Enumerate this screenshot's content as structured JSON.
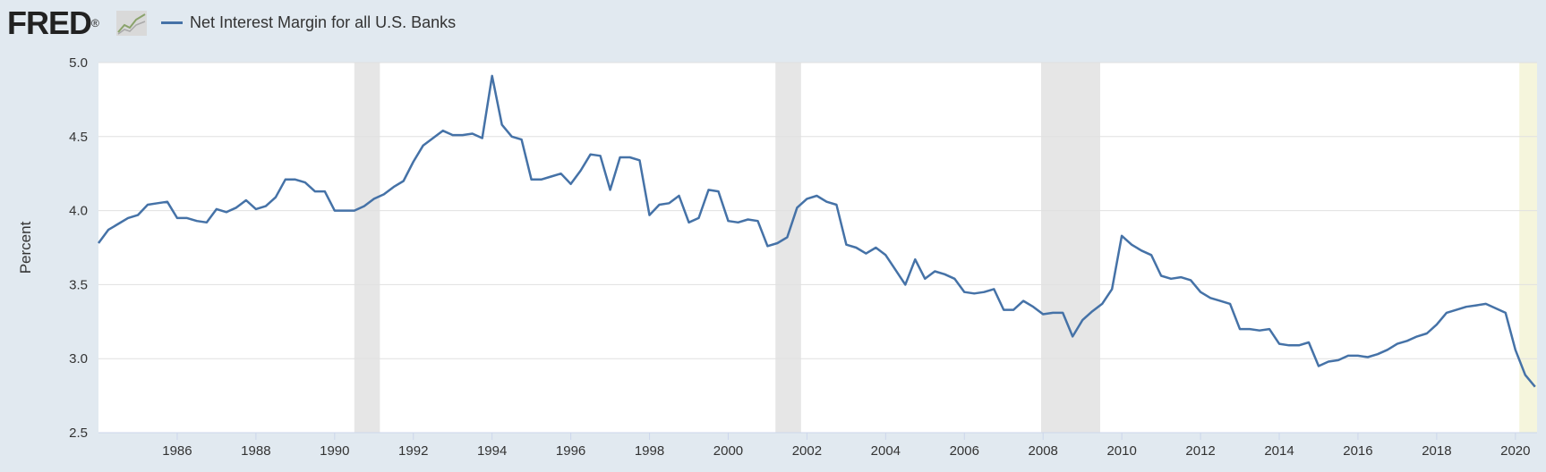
{
  "header": {
    "logo": "FRED",
    "logo_mark": "®",
    "graph_icon": "line-graph-icon",
    "legend_label": "Net Interest Margin for all U.S. Banks"
  },
  "colors": {
    "series": "#4572a7",
    "recession": "#e6e6e6",
    "projection": "#f5f5dc",
    "plot_bg": "#ffffff",
    "page_bg": "#e1e9f0",
    "grid": "#e0e0e0"
  },
  "chart_data": {
    "type": "line",
    "title": "",
    "xlabel": "",
    "ylabel": "Percent",
    "xlim": [
      1984.0,
      2020.55
    ],
    "ylim": [
      2.5,
      5.0
    ],
    "yticks": [
      "2.5",
      "3.0",
      "3.5",
      "4.0",
      "4.5",
      "5.0"
    ],
    "xticks": [
      "1986",
      "1988",
      "1990",
      "1992",
      "1994",
      "1996",
      "1998",
      "2000",
      "2002",
      "2004",
      "2006",
      "2008",
      "2010",
      "2012",
      "2014",
      "2016",
      "2018",
      "2020"
    ],
    "grid": true,
    "legend_position": "top-left",
    "recessions": [
      [
        1990.5,
        1991.15
      ],
      [
        2001.2,
        2001.85
      ],
      [
        2007.95,
        2009.45
      ]
    ],
    "projection_band": [
      2020.1,
      2020.55
    ],
    "series": [
      {
        "name": "Net Interest Margin for all U.S. Banks",
        "x": [
          1984.0,
          1984.25,
          1984.5,
          1984.75,
          1985.0,
          1985.25,
          1985.5,
          1985.75,
          1986.0,
          1986.25,
          1986.5,
          1986.75,
          1987.0,
          1987.25,
          1987.5,
          1987.75,
          1988.0,
          1988.25,
          1988.5,
          1988.75,
          1989.0,
          1989.25,
          1989.5,
          1989.75,
          1990.0,
          1990.25,
          1990.5,
          1990.75,
          1991.0,
          1991.25,
          1991.5,
          1991.75,
          1992.0,
          1992.25,
          1992.5,
          1992.75,
          1993.0,
          1993.25,
          1993.5,
          1993.75,
          1994.0,
          1994.25,
          1994.5,
          1994.75,
          1995.0,
          1995.25,
          1995.5,
          1995.75,
          1996.0,
          1996.25,
          1996.5,
          1996.75,
          1997.0,
          1997.25,
          1997.5,
          1997.75,
          1998.0,
          1998.25,
          1998.5,
          1998.75,
          1999.0,
          1999.25,
          1999.5,
          1999.75,
          2000.0,
          2000.25,
          2000.5,
          2000.75,
          2001.0,
          2001.25,
          2001.5,
          2001.75,
          2002.0,
          2002.25,
          2002.5,
          2002.75,
          2003.0,
          2003.25,
          2003.5,
          2003.75,
          2004.0,
          2004.25,
          2004.5,
          2004.75,
          2005.0,
          2005.25,
          2005.5,
          2005.75,
          2006.0,
          2006.25,
          2006.5,
          2006.75,
          2007.0,
          2007.25,
          2007.5,
          2007.75,
          2008.0,
          2008.25,
          2008.5,
          2008.75,
          2009.0,
          2009.25,
          2009.5,
          2009.75,
          2010.0,
          2010.25,
          2010.5,
          2010.75,
          2011.0,
          2011.25,
          2011.5,
          2011.75,
          2012.0,
          2012.25,
          2012.5,
          2012.75,
          2013.0,
          2013.25,
          2013.5,
          2013.75,
          2014.0,
          2014.25,
          2014.5,
          2014.75,
          2015.0,
          2015.25,
          2015.5,
          2015.75,
          2016.0,
          2016.25,
          2016.5,
          2016.75,
          2017.0,
          2017.25,
          2017.5,
          2017.75,
          2018.0,
          2018.25,
          2018.5,
          2018.75,
          2019.0,
          2019.25,
          2019.5,
          2019.75,
          2020.0,
          2020.25,
          2020.5
        ],
        "values": [
          3.78,
          3.87,
          3.91,
          3.95,
          3.97,
          4.04,
          4.05,
          4.06,
          3.95,
          3.95,
          3.93,
          3.92,
          4.01,
          3.99,
          4.02,
          4.07,
          4.01,
          4.03,
          4.09,
          4.21,
          4.21,
          4.19,
          4.13,
          4.13,
          4.0,
          4.0,
          4.0,
          4.03,
          4.08,
          4.11,
          4.16,
          4.2,
          4.33,
          4.44,
          4.49,
          4.54,
          4.51,
          4.51,
          4.52,
          4.49,
          4.91,
          4.58,
          4.5,
          4.48,
          4.21,
          4.21,
          4.23,
          4.25,
          4.18,
          4.27,
          4.38,
          4.37,
          4.14,
          4.36,
          4.36,
          4.34,
          3.97,
          4.04,
          4.05,
          4.1,
          3.92,
          3.95,
          4.14,
          4.13,
          3.93,
          3.92,
          3.94,
          3.93,
          3.76,
          3.78,
          3.82,
          4.02,
          4.08,
          4.1,
          4.06,
          4.04,
          3.77,
          3.75,
          3.71,
          3.75,
          3.7,
          3.6,
          3.5,
          3.67,
          3.54,
          3.59,
          3.57,
          3.54,
          3.45,
          3.44,
          3.45,
          3.47,
          3.33,
          3.33,
          3.39,
          3.35,
          3.3,
          3.31,
          3.31,
          3.15,
          3.26,
          3.32,
          3.37,
          3.47,
          3.83,
          3.77,
          3.73,
          3.7,
          3.56,
          3.54,
          3.55,
          3.53,
          3.45,
          3.41,
          3.39,
          3.37,
          3.2,
          3.2,
          3.19,
          3.2,
          3.1,
          3.09,
          3.09,
          3.11,
          2.95,
          2.98,
          2.99,
          3.02,
          3.02,
          3.01,
          3.03,
          3.06,
          3.1,
          3.12,
          3.15,
          3.17,
          3.23,
          3.31,
          3.33,
          3.35,
          3.36,
          3.37,
          3.34,
          3.31,
          3.06,
          2.89,
          2.81
        ]
      }
    ]
  }
}
